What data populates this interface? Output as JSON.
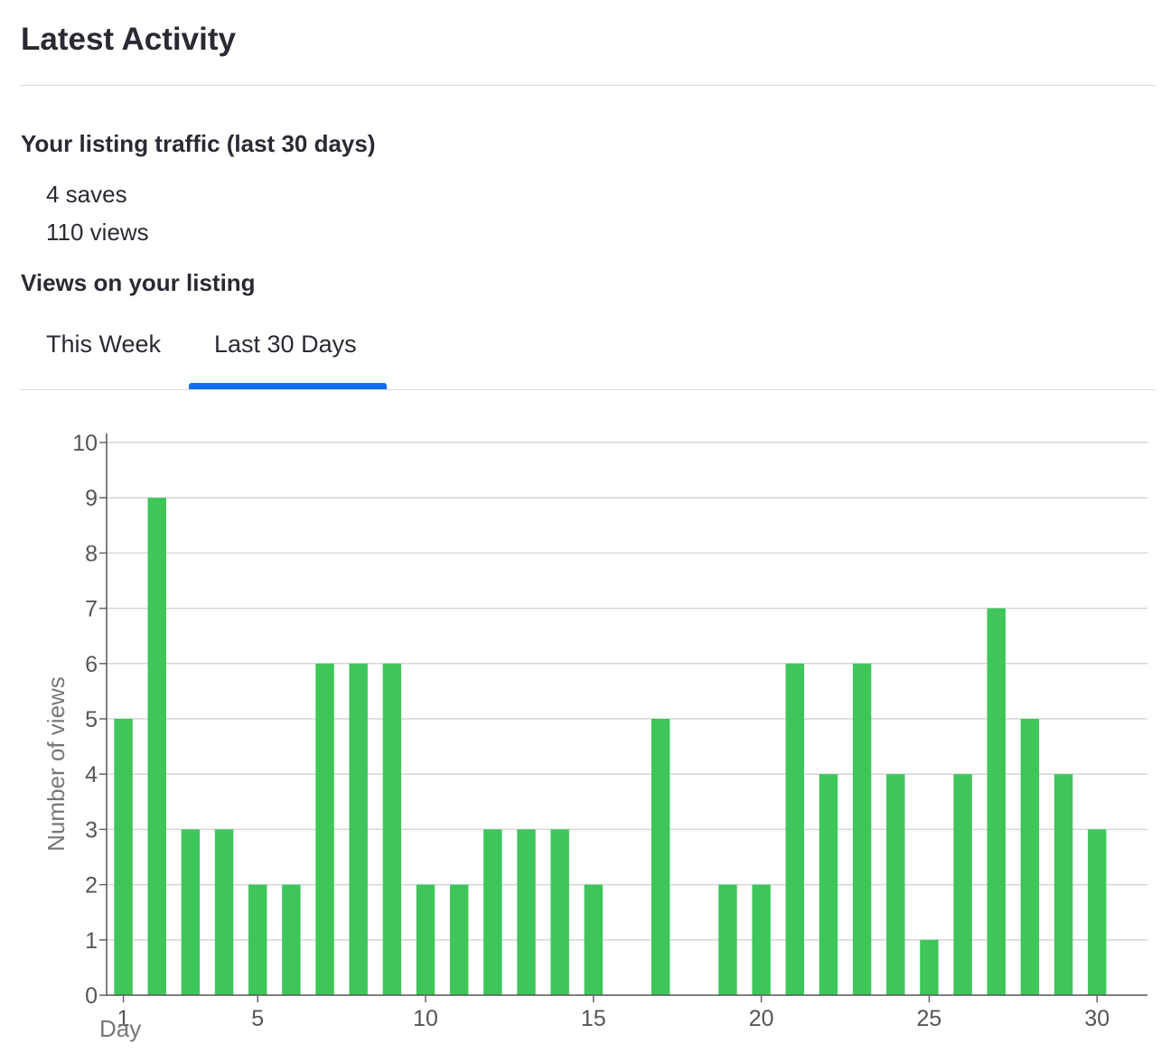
{
  "header": {
    "title": "Latest Activity"
  },
  "traffic": {
    "heading": "Your listing traffic (last 30 days)",
    "saves": "4 saves",
    "views": "110 views"
  },
  "views_section": {
    "heading": "Views on your listing",
    "tabs": [
      {
        "label": "This Week",
        "active": false
      },
      {
        "label": "Last 30 Days",
        "active": true
      }
    ]
  },
  "colors": {
    "bar": "#3ec65a",
    "accent": "#0e6ff1",
    "grid": "#d6d6d6"
  },
  "chart_data": {
    "type": "bar",
    "xlabel": "Day",
    "ylabel": "Number of views",
    "x": [
      1,
      2,
      3,
      4,
      5,
      6,
      7,
      8,
      9,
      10,
      11,
      12,
      13,
      14,
      15,
      16,
      17,
      18,
      19,
      20,
      21,
      22,
      23,
      24,
      25,
      26,
      27,
      28,
      29,
      30
    ],
    "values": [
      5,
      9,
      3,
      3,
      2,
      2,
      6,
      6,
      6,
      2,
      2,
      3,
      3,
      3,
      2,
      0,
      5,
      0,
      2,
      2,
      6,
      4,
      6,
      4,
      1,
      4,
      7,
      5,
      4,
      3
    ],
    "xticks": [
      1,
      5,
      10,
      15,
      20,
      25,
      30
    ],
    "yticks": [
      0,
      1,
      2,
      3,
      4,
      5,
      6,
      7,
      8,
      9,
      10
    ],
    "xlim": [
      0.5,
      31.5
    ],
    "ylim": [
      0,
      10
    ],
    "grid": true
  }
}
